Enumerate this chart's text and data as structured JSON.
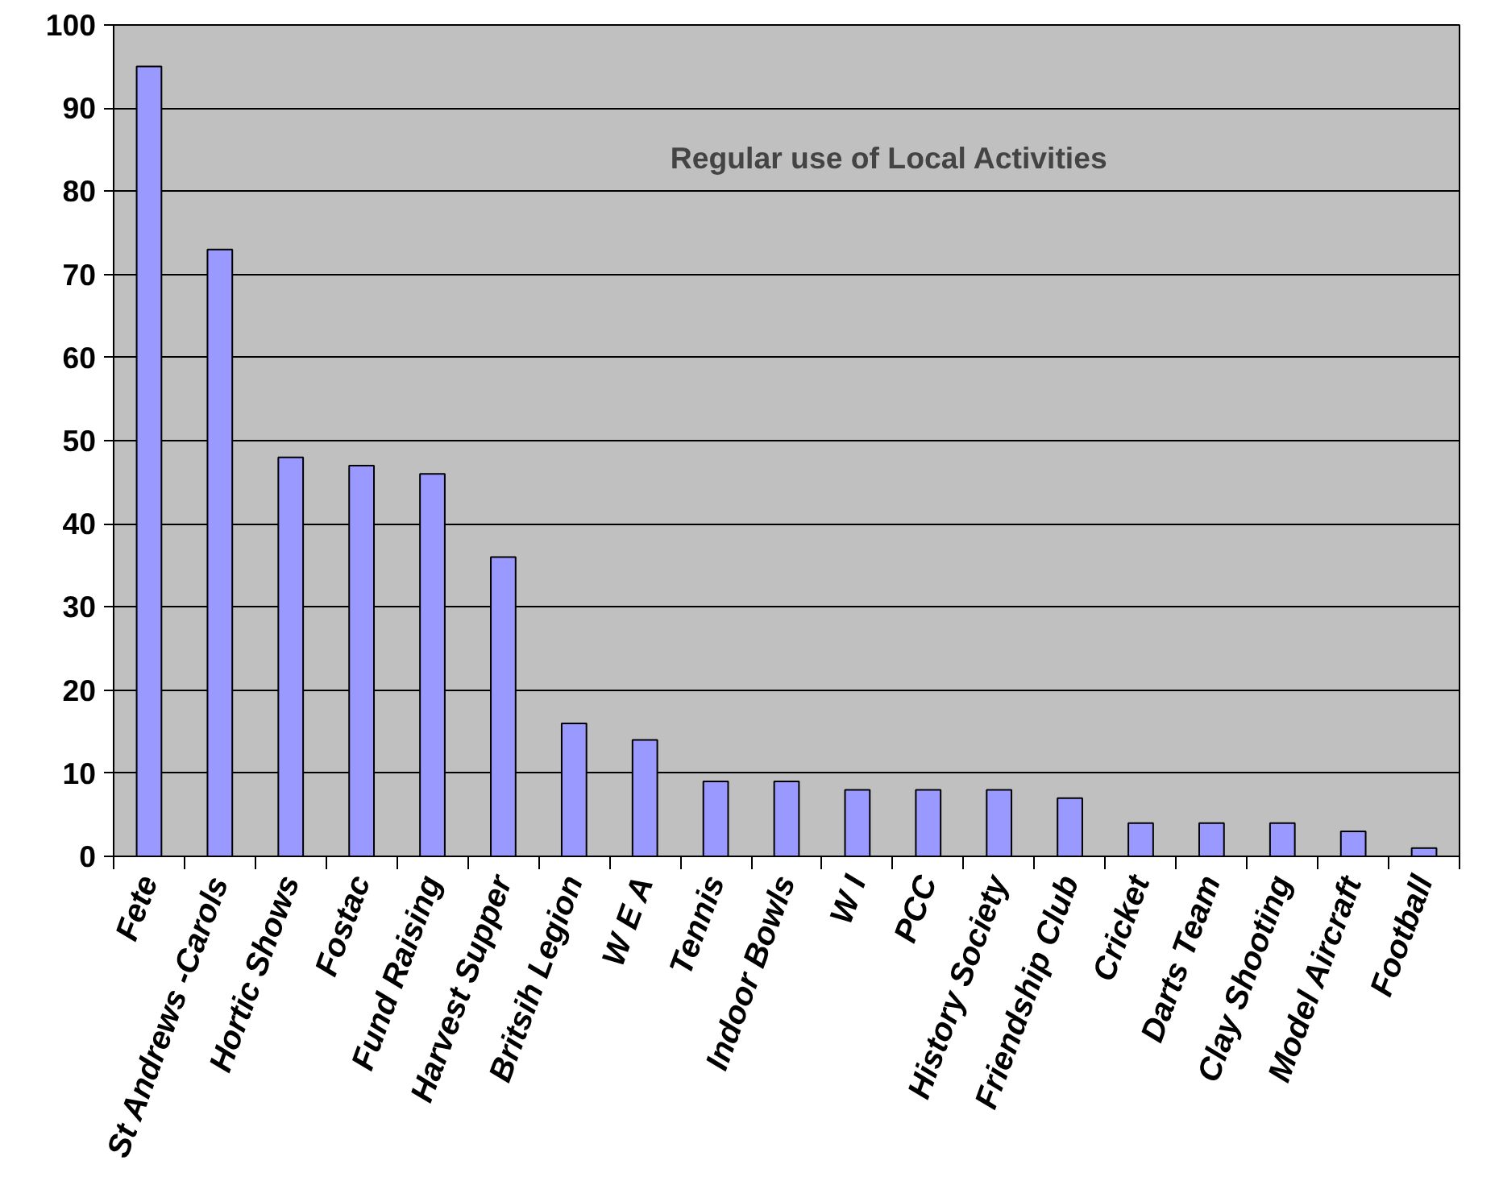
{
  "chart_data": {
    "type": "bar",
    "title": "Regular use of Local Activities",
    "categories": [
      "Fete",
      "St Andrews -Carols",
      "Hortic Shows",
      "Fostac",
      "Fund Raising",
      "Harvest Supper",
      "Britsih Legion",
      "W E A",
      "Tennis",
      "Indoor Bowls",
      "W I",
      "PCC",
      "History Society",
      "Friendship Club",
      "Cricket",
      "Darts Team",
      "Clay Shooting",
      "Model Aircraft",
      "Football"
    ],
    "values": [
      95,
      73,
      48,
      47,
      46,
      36,
      16,
      14,
      9,
      9,
      8,
      8,
      8,
      7,
      4,
      4,
      4,
      3,
      1
    ],
    "color": "#9999ff",
    "ylim": [
      0,
      100
    ],
    "yticks": [
      0,
      10,
      20,
      30,
      40,
      50,
      60,
      70,
      80,
      90,
      100
    ],
    "grid": "y"
  }
}
